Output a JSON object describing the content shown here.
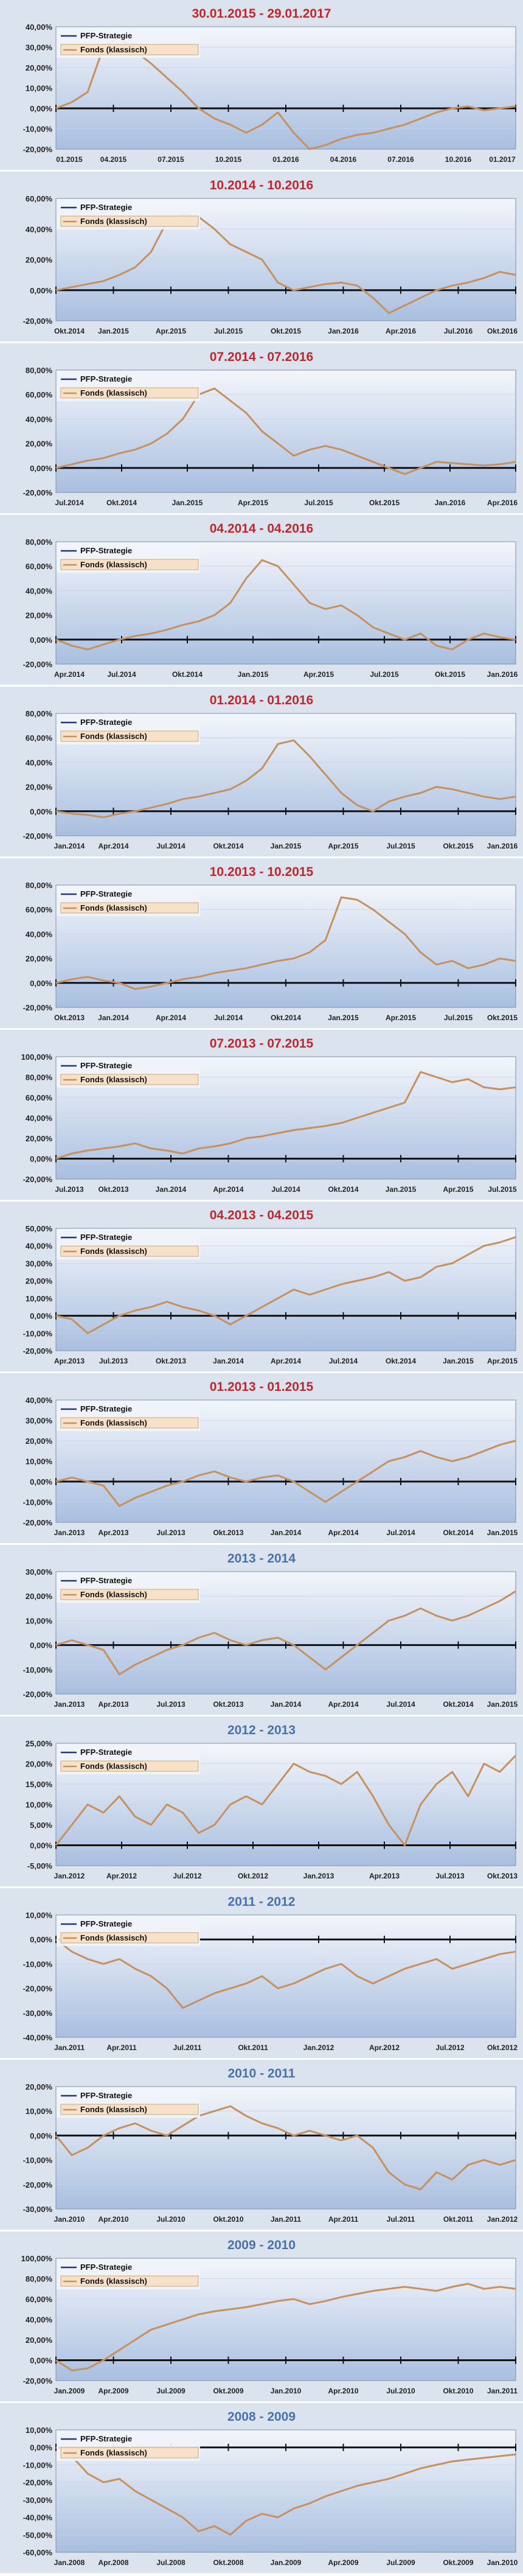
{
  "legend": {
    "strategy": "PFP-Strategie",
    "fund": "Fonds (klassisch)"
  },
  "colors": {
    "redTitle": "#c0272d",
    "blueTitle": "#4a72a8",
    "fundLine": "#c8905c",
    "strategyLine": "#1f3b73",
    "plotTop": "#f3f6fb",
    "plotBottom": "#a9bfe0"
  },
  "chart_data": [
    {
      "type": "line",
      "title": "30.01.2015 - 29.01.2017",
      "titleColor": "red",
      "ylim": [
        -20,
        40
      ],
      "yticks": [
        -20,
        -10,
        0,
        10,
        20,
        30,
        40
      ],
      "decimals": 2,
      "xlabels": [
        "01.2015",
        "04.2015",
        "07.2015",
        "10.2015",
        "01.2016",
        "04.2016",
        "07.2016",
        "10.2016",
        "01.2017"
      ],
      "series": [
        {
          "name": "Fonds (klassisch)",
          "values": [
            0,
            3,
            8,
            30,
            35,
            28,
            22,
            15,
            8,
            0,
            -5,
            -8,
            -12,
            -8,
            -2,
            -12,
            -20,
            -18,
            -15,
            -13,
            -12,
            -10,
            -8,
            -5,
            -2,
            0,
            1,
            -1,
            0,
            1
          ]
        }
      ]
    },
    {
      "type": "line",
      "title": "10.2014 - 10.2016",
      "titleColor": "red",
      "ylim": [
        -20,
        60
      ],
      "yticks": [
        -20,
        0,
        20,
        40,
        60
      ],
      "decimals": 2,
      "xlabels": [
        "Okt.2014",
        "Jan.2015",
        "Apr.2015",
        "Jul.2015",
        "Okt.2015",
        "Jan.2016",
        "Apr.2016",
        "Jul.2016",
        "Okt.2016"
      ],
      "series": [
        {
          "name": "Fonds (klassisch)",
          "values": [
            0,
            2,
            4,
            6,
            10,
            15,
            25,
            45,
            50,
            48,
            40,
            30,
            25,
            20,
            5,
            0,
            2,
            4,
            5,
            3,
            -5,
            -15,
            -10,
            -5,
            0,
            3,
            5,
            8,
            12,
            10
          ]
        }
      ]
    },
    {
      "type": "line",
      "title": "07.2014 - 07.2016",
      "titleColor": "red",
      "ylim": [
        -20,
        80
      ],
      "yticks": [
        -20,
        0,
        20,
        40,
        60,
        80
      ],
      "decimals": 2,
      "xlabels": [
        "Jul.2014",
        "Okt.2014",
        "Jan.2015",
        "Apr.2015",
        "Jul.2015",
        "Okt.2015",
        "Jan.2016",
        "Apr.2016"
      ],
      "series": [
        {
          "name": "Fonds (klassisch)",
          "values": [
            0,
            3,
            6,
            8,
            12,
            15,
            20,
            28,
            40,
            60,
            65,
            55,
            45,
            30,
            20,
            10,
            15,
            18,
            15,
            10,
            5,
            0,
            -5,
            0,
            5,
            4,
            3,
            2,
            3,
            5
          ]
        }
      ]
    },
    {
      "type": "line",
      "title": "04.2014 - 04.2016",
      "titleColor": "red",
      "ylim": [
        -20,
        80
      ],
      "yticks": [
        -20,
        0,
        20,
        40,
        60,
        80
      ],
      "decimals": 2,
      "xlabels": [
        "Apr.2014",
        "Jul.2014",
        "Okt.2014",
        "Jan.2015",
        "Apr.2015",
        "Jul.2015",
        "Okt.2015",
        "Jan.2016"
      ],
      "series": [
        {
          "name": "Fonds (klassisch)",
          "values": [
            0,
            -5,
            -8,
            -4,
            0,
            3,
            5,
            8,
            12,
            15,
            20,
            30,
            50,
            65,
            60,
            45,
            30,
            25,
            28,
            20,
            10,
            5,
            0,
            5,
            -5,
            -8,
            0,
            5,
            2,
            0
          ]
        }
      ]
    },
    {
      "type": "line",
      "title": "01.2014 - 01.2016",
      "titleColor": "red",
      "ylim": [
        -20,
        80
      ],
      "yticks": [
        -20,
        0,
        20,
        40,
        60,
        80
      ],
      "decimals": 2,
      "xlabels": [
        "Jan.2014",
        "Apr.2014",
        "Jul.2014",
        "Okt.2014",
        "Jan.2015",
        "Apr.2015",
        "Jul.2015",
        "Okt.2015",
        "Jan.2016"
      ],
      "series": [
        {
          "name": "Fonds (klassisch)",
          "values": [
            0,
            -2,
            -3,
            -5,
            -2,
            0,
            3,
            6,
            10,
            12,
            15,
            18,
            25,
            35,
            55,
            58,
            45,
            30,
            15,
            5,
            0,
            8,
            12,
            15,
            20,
            18,
            15,
            12,
            10,
            12
          ]
        }
      ]
    },
    {
      "type": "line",
      "title": "10.2013 - 10.2015",
      "titleColor": "red",
      "ylim": [
        -20,
        80
      ],
      "yticks": [
        -20,
        0,
        20,
        40,
        60,
        80
      ],
      "decimals": 2,
      "xlabels": [
        "Okt.2013",
        "Jan.2014",
        "Apr.2014",
        "Jul.2014",
        "Okt.2014",
        "Jan.2015",
        "Apr.2015",
        "Jul.2015",
        "Okt.2015"
      ],
      "series": [
        {
          "name": "Fonds (klassisch)",
          "values": [
            0,
            3,
            5,
            2,
            0,
            -5,
            -3,
            0,
            3,
            5,
            8,
            10,
            12,
            15,
            18,
            20,
            25,
            35,
            70,
            68,
            60,
            50,
            40,
            25,
            15,
            18,
            12,
            15,
            20,
            18
          ]
        }
      ]
    },
    {
      "type": "line",
      "title": "07.2013 - 07.2015",
      "titleColor": "red",
      "ylim": [
        -20,
        100
      ],
      "yticks": [
        -20,
        0,
        20,
        40,
        60,
        80,
        100
      ],
      "decimals": 2,
      "xlabels": [
        "Jul.2013",
        "Okt.2013",
        "Jan.2014",
        "Apr.2014",
        "Jul.2014",
        "Okt.2014",
        "Jan.2015",
        "Apr.2015",
        "Jul.2015"
      ],
      "series": [
        {
          "name": "Fonds (klassisch)",
          "values": [
            0,
            5,
            8,
            10,
            12,
            15,
            10,
            8,
            5,
            10,
            12,
            15,
            20,
            22,
            25,
            28,
            30,
            32,
            35,
            40,
            45,
            50,
            55,
            85,
            80,
            75,
            78,
            70,
            68,
            70
          ]
        }
      ]
    },
    {
      "type": "line",
      "title": "04.2013 - 04.2015",
      "titleColor": "red",
      "ylim": [
        -20,
        50
      ],
      "yticks": [
        -20,
        -10,
        0,
        10,
        20,
        30,
        40,
        50
      ],
      "decimals": 2,
      "xlabels": [
        "Apr.2013",
        "Jul.2013",
        "Okt.2013",
        "Jan.2014",
        "Apr.2014",
        "Jul.2014",
        "Okt.2014",
        "Jan.2015",
        "Apr.2015"
      ],
      "series": [
        {
          "name": "Fonds (klassisch)",
          "values": [
            0,
            -2,
            -10,
            -5,
            0,
            3,
            5,
            8,
            5,
            3,
            0,
            -5,
            0,
            5,
            10,
            15,
            12,
            15,
            18,
            20,
            22,
            25,
            20,
            22,
            28,
            30,
            35,
            40,
            42,
            45
          ]
        }
      ]
    },
    {
      "type": "line",
      "title": "01.2013 - 01.2015",
      "titleColor": "red",
      "ylim": [
        -20,
        40
      ],
      "yticks": [
        -20,
        -10,
        0,
        10,
        20,
        30,
        40
      ],
      "decimals": 2,
      "xlabels": [
        "Jan.2013",
        "Apr.2013",
        "Jul.2013",
        "Okt.2013",
        "Jan.2014",
        "Apr.2014",
        "Jul.2014",
        "Okt.2014",
        "Jan.2015"
      ],
      "series": [
        {
          "name": "Fonds (klassisch)",
          "values": [
            0,
            2,
            0,
            -2,
            -12,
            -8,
            -5,
            -2,
            0,
            3,
            5,
            2,
            0,
            2,
            3,
            0,
            -5,
            -10,
            -5,
            0,
            5,
            10,
            12,
            15,
            12,
            10,
            12,
            15,
            18,
            20
          ]
        }
      ]
    },
    {
      "type": "line",
      "title": "2013 - 2014",
      "titleColor": "blue",
      "ylim": [
        -20,
        30
      ],
      "yticks": [
        -20,
        -10,
        0,
        10,
        20,
        30
      ],
      "decimals": 2,
      "xlabels": [
        "Jan.2013",
        "Apr.2013",
        "Jul.2013",
        "Okt.2013",
        "Jan.2014",
        "Apr.2014",
        "Jul.2014",
        "Okt.2014",
        "Jan.2015"
      ],
      "series": [
        {
          "name": "Fonds (klassisch)",
          "values": [
            0,
            2,
            0,
            -2,
            -12,
            -8,
            -5,
            -2,
            0,
            3,
            5,
            2,
            0,
            2,
            3,
            0,
            -5,
            -10,
            -5,
            0,
            5,
            10,
            12,
            15,
            12,
            10,
            12,
            15,
            18,
            22
          ]
        }
      ]
    },
    {
      "type": "line",
      "title": "2012 - 2013",
      "titleColor": "blue",
      "ylim": [
        -5,
        25
      ],
      "yticks": [
        -5,
        0,
        5,
        10,
        15,
        20,
        25
      ],
      "decimals": 2,
      "xlabels": [
        "Jan.2012",
        "Apr.2012",
        "Jul.2012",
        "Okt.2012",
        "Jan.2013",
        "Apr.2013",
        "Jul.2013",
        "Okt.2013"
      ],
      "series": [
        {
          "name": "Fonds (klassisch)",
          "values": [
            0,
            5,
            10,
            8,
            12,
            7,
            5,
            10,
            8,
            3,
            5,
            10,
            12,
            10,
            15,
            20,
            18,
            17,
            15,
            18,
            12,
            5,
            0,
            10,
            15,
            18,
            12,
            20,
            18,
            22
          ]
        }
      ]
    },
    {
      "type": "line",
      "title": "2011 - 2012",
      "titleColor": "blue",
      "ylim": [
        -40,
        10
      ],
      "yticks": [
        -40,
        -30,
        -20,
        -10,
        0,
        10
      ],
      "decimals": 2,
      "xlabels": [
        "Jan.2011",
        "Apr.2011",
        "Jul.2011",
        "Okt.2011",
        "Jan.2012",
        "Apr.2012",
        "Jul.2012",
        "Okt.2012"
      ],
      "series": [
        {
          "name": "Fonds (klassisch)",
          "values": [
            0,
            -5,
            -8,
            -10,
            -8,
            -12,
            -15,
            -20,
            -28,
            -25,
            -22,
            -20,
            -18,
            -15,
            -20,
            -18,
            -15,
            -12,
            -10,
            -15,
            -18,
            -15,
            -12,
            -10,
            -8,
            -12,
            -10,
            -8,
            -6,
            -5
          ]
        }
      ]
    },
    {
      "type": "line",
      "title": "2010 - 2011",
      "titleColor": "blue",
      "ylim": [
        -30,
        20
      ],
      "yticks": [
        -30,
        -20,
        -10,
        0,
        10,
        20
      ],
      "decimals": 2,
      "xlabels": [
        "Jan.2010",
        "Apr.2010",
        "Jul.2010",
        "Okt.2010",
        "Jan.2011",
        "Apr.2011",
        "Jul.2011",
        "Okt.2011",
        "Jan.2012"
      ],
      "series": [
        {
          "name": "Fonds (klassisch)",
          "values": [
            0,
            -8,
            -5,
            0,
            3,
            5,
            2,
            0,
            4,
            8,
            10,
            12,
            8,
            5,
            3,
            0,
            2,
            0,
            -2,
            0,
            -5,
            -15,
            -20,
            -22,
            -15,
            -18,
            -12,
            -10,
            -12,
            -10
          ]
        }
      ]
    },
    {
      "type": "line",
      "title": "2009 - 2010",
      "titleColor": "blue",
      "ylim": [
        -20,
        100
      ],
      "yticks": [
        -20,
        0,
        20,
        40,
        60,
        80,
        100
      ],
      "decimals": 2,
      "xlabels": [
        "Jan.2009",
        "Apr.2009",
        "Jul.2009",
        "Okt.2009",
        "Jan.2010",
        "Apr.2010",
        "Jul.2010",
        "Okt.2010",
        "Jan.2011"
      ],
      "series": [
        {
          "name": "Fonds (klassisch)",
          "values": [
            0,
            -10,
            -8,
            0,
            10,
            20,
            30,
            35,
            40,
            45,
            48,
            50,
            52,
            55,
            58,
            60,
            55,
            58,
            62,
            65,
            68,
            70,
            72,
            70,
            68,
            72,
            75,
            70,
            72,
            70
          ]
        }
      ]
    },
    {
      "type": "line",
      "title": "2008 - 2009",
      "titleColor": "blue",
      "ylim": [
        -60,
        10
      ],
      "yticks": [
        -60,
        -50,
        -40,
        -30,
        -20,
        -10,
        0,
        10
      ],
      "decimals": 2,
      "xlabels": [
        "Jan.2008",
        "Apr.2008",
        "Jul.2008",
        "Okt.2008",
        "Jan.2009",
        "Apr.2009",
        "Jul.2009",
        "Okt.2009",
        "Jan.2010"
      ],
      "series": [
        {
          "name": "Fonds (klassisch)",
          "values": [
            0,
            -5,
            -15,
            -20,
            -18,
            -25,
            -30,
            -35,
            -40,
            -48,
            -45,
            -50,
            -42,
            -38,
            -40,
            -35,
            -32,
            -28,
            -25,
            -22,
            -20,
            -18,
            -15,
            -12,
            -10,
            -8,
            -7,
            -6,
            -5,
            -4
          ]
        }
      ]
    }
  ]
}
